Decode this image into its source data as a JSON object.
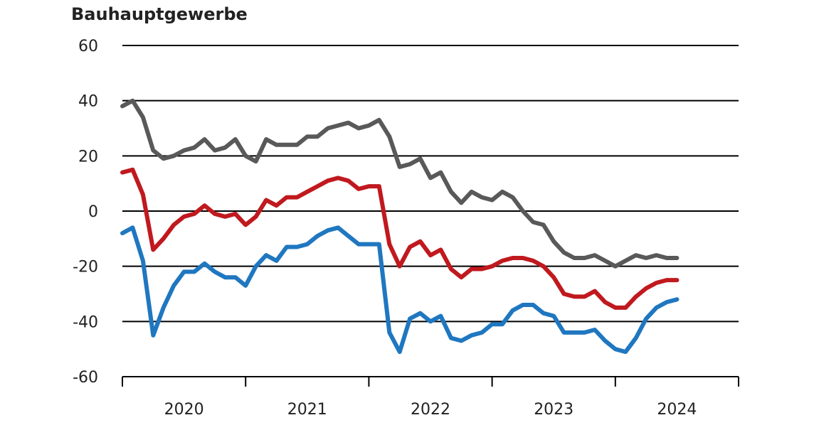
{
  "chart_data": {
    "type": "line",
    "title": "Bauhauptgewerbe",
    "xlabel": "",
    "ylabel": "",
    "ylim": [
      -60,
      60
    ],
    "yticks": [
      60,
      40,
      20,
      0,
      -20,
      -40,
      -60
    ],
    "ytick_labels": [
      "60",
      "40",
      "20",
      "0",
      "-20",
      "-40",
      "-60"
    ],
    "xlim": [
      2020,
      2025
    ],
    "xticks": [
      2020,
      2021,
      2022,
      2023,
      2024
    ],
    "xtick_labels": [
      "2020",
      "2021",
      "2022",
      "2023",
      "2024"
    ],
    "grid": "horizontal",
    "legend": "none",
    "series": [
      {
        "color": "#595959",
        "x": [
          2020.0,
          2020.083,
          2020.167,
          2020.25,
          2020.333,
          2020.417,
          2020.5,
          2020.583,
          2020.667,
          2020.75,
          2020.833,
          2020.917,
          2021.0,
          2021.083,
          2021.167,
          2021.25,
          2021.333,
          2021.417,
          2021.5,
          2021.583,
          2021.667,
          2021.75,
          2021.833,
          2021.917,
          2022.0,
          2022.083,
          2022.167,
          2022.25,
          2022.333,
          2022.417,
          2022.5,
          2022.583,
          2022.667,
          2022.75,
          2022.833,
          2022.917,
          2023.0,
          2023.083,
          2023.167,
          2023.25,
          2023.333,
          2023.417,
          2023.5,
          2023.583,
          2023.667,
          2023.75,
          2023.833,
          2023.917,
          2024.0,
          2024.083,
          2024.167,
          2024.25,
          2024.333,
          2024.417,
          2024.5
        ],
        "y": [
          38,
          40,
          34,
          22,
          19,
          20,
          22,
          23,
          26,
          22,
          23,
          26,
          20,
          18,
          26,
          24,
          24,
          24,
          27,
          27,
          30,
          31,
          32,
          30,
          31,
          33,
          27,
          16,
          17,
          19,
          12,
          14,
          7,
          3,
          7,
          5,
          4,
          7,
          5,
          0,
          -4,
          -5,
          -11,
          -15,
          -17,
          -17,
          -16,
          -18,
          -20,
          -18,
          -16,
          -17,
          -16,
          -17,
          -17
        ]
      },
      {
        "color": "#c0191e",
        "x": [
          2020.0,
          2020.083,
          2020.167,
          2020.25,
          2020.333,
          2020.417,
          2020.5,
          2020.583,
          2020.667,
          2020.75,
          2020.833,
          2020.917,
          2021.0,
          2021.083,
          2021.167,
          2021.25,
          2021.333,
          2021.417,
          2021.5,
          2021.583,
          2021.667,
          2021.75,
          2021.833,
          2021.917,
          2022.0,
          2022.083,
          2022.167,
          2022.25,
          2022.333,
          2022.417,
          2022.5,
          2022.583,
          2022.667,
          2022.75,
          2022.833,
          2022.917,
          2023.0,
          2023.083,
          2023.167,
          2023.25,
          2023.333,
          2023.417,
          2023.5,
          2023.583,
          2023.667,
          2023.75,
          2023.833,
          2023.917,
          2024.0,
          2024.083,
          2024.167,
          2024.25,
          2024.333,
          2024.417,
          2024.5
        ],
        "y": [
          14,
          15,
          6,
          -14,
          -10,
          -5,
          -2,
          -1,
          2,
          -1,
          -2,
          -1,
          -5,
          -2,
          4,
          2,
          5,
          5,
          7,
          9,
          11,
          12,
          11,
          8,
          9,
          9,
          -12,
          -20,
          -13,
          -11,
          -16,
          -14,
          -21,
          -24,
          -21,
          -21,
          -20,
          -18,
          -17,
          -17,
          -18,
          -20,
          -24,
          -30,
          -31,
          -31,
          -29,
          -33,
          -35,
          -35,
          -31,
          -28,
          -26,
          -25,
          -25
        ]
      },
      {
        "color": "#1f77c0",
        "x": [
          2020.0,
          2020.083,
          2020.167,
          2020.25,
          2020.333,
          2020.417,
          2020.5,
          2020.583,
          2020.667,
          2020.75,
          2020.833,
          2020.917,
          2021.0,
          2021.083,
          2021.167,
          2021.25,
          2021.333,
          2021.417,
          2021.5,
          2021.583,
          2021.667,
          2021.75,
          2021.833,
          2021.917,
          2022.0,
          2022.083,
          2022.167,
          2022.25,
          2022.333,
          2022.417,
          2022.5,
          2022.583,
          2022.667,
          2022.75,
          2022.833,
          2022.917,
          2023.0,
          2023.083,
          2023.167,
          2023.25,
          2023.333,
          2023.417,
          2023.5,
          2023.583,
          2023.667,
          2023.75,
          2023.833,
          2023.917,
          2024.0,
          2024.083,
          2024.167,
          2024.25,
          2024.333,
          2024.417,
          2024.5
        ],
        "y": [
          -8,
          -6,
          -18,
          -45,
          -35,
          -27,
          -22,
          -22,
          -19,
          -22,
          -24,
          -24,
          -27,
          -20,
          -16,
          -18,
          -13,
          -13,
          -12,
          -9,
          -7,
          -6,
          -9,
          -12,
          -12,
          -12,
          -44,
          -51,
          -39,
          -37,
          -40,
          -38,
          -46,
          -47,
          -45,
          -44,
          -41,
          -41,
          -36,
          -34,
          -34,
          -37,
          -38,
          -44,
          -44,
          -44,
          -43,
          -47,
          -50,
          -51,
          -46,
          -39,
          -35,
          -33,
          -32
        ]
      }
    ]
  }
}
